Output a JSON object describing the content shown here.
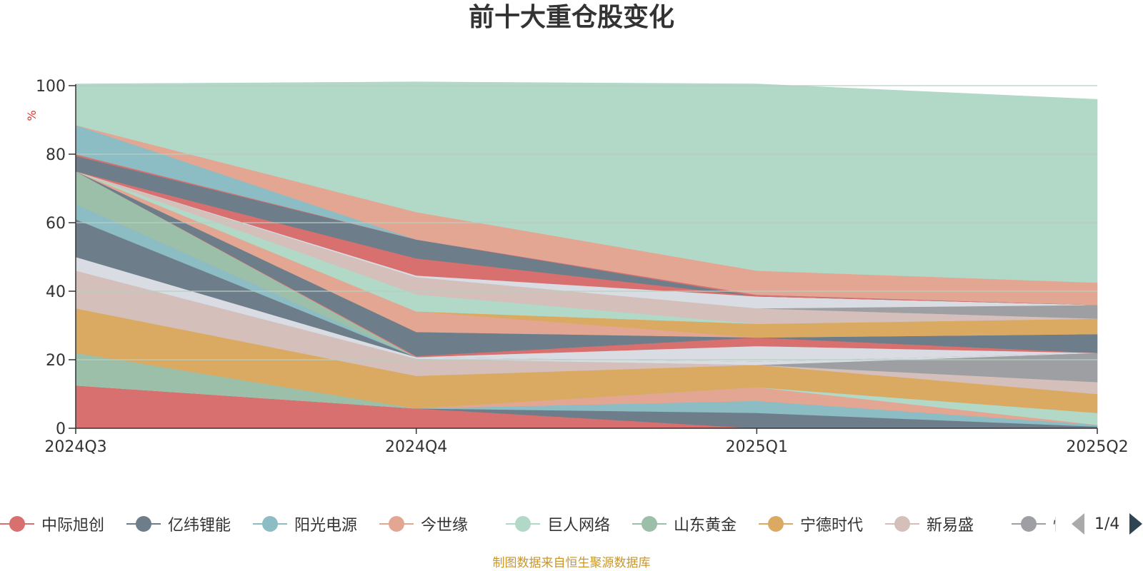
{
  "title": "前十大重仓股变化",
  "source": "制图数据来自恒生聚源数据库",
  "pager": "1/4",
  "colors": {
    "top_area": "#b2d8c7",
    "axis": "#333333",
    "grid": "#b8cfc2",
    "unit": "#e03030"
  },
  "chart_data": {
    "type": "area",
    "stacked": true,
    "ylabel": "%",
    "ylim": [
      0,
      100
    ],
    "yticks": [
      0,
      20,
      40,
      60,
      80,
      100
    ],
    "grid": true,
    "legend_position": "bottom",
    "categories": [
      "2024Q3",
      "2024Q4",
      "2025Q1",
      "2025Q2"
    ],
    "series": [
      {
        "name": "中际旭创",
        "color": "#d7706e",
        "values": [
          12.5,
          5.8,
          0,
          0
        ]
      },
      {
        "name": "亿纬锂能",
        "color": "#6d7e8a",
        "values": [
          0,
          0,
          4.5,
          0.5
        ]
      },
      {
        "name": "阳光电源",
        "color": "#8cbcc4",
        "values": [
          0,
          0,
          3.5,
          0.5
        ]
      },
      {
        "name": "今世缘",
        "color": "#e3a692",
        "values": [
          0,
          0,
          4,
          0
        ]
      },
      {
        "name": "巨人网络",
        "color": "#b2d8c7",
        "values": [
          0,
          0,
          0,
          3.5
        ]
      },
      {
        "name": "山东黄金",
        "color": "#9bbfa8",
        "values": [
          9.5,
          0,
          0,
          0
        ]
      },
      {
        "name": "宁德时代",
        "color": "#dbaa62",
        "values": [
          13,
          9.5,
          6.5,
          5.5
        ]
      },
      {
        "name": "新易盛",
        "color": "#d4bfba",
        "values": [
          11,
          5,
          0,
          3.5
        ]
      },
      {
        "name": "恺英网络",
        "color": "#9d9fa2",
        "values": [
          0,
          0,
          0,
          8.5
        ]
      },
      {
        "name": null,
        "color": "#d9dde3",
        "values": [
          4,
          0.5,
          1,
          0
        ]
      },
      {
        "name": null,
        "color": "#6d7e8a",
        "values": [
          11,
          0,
          0,
          0
        ]
      },
      {
        "name": null,
        "color": "#8cbcc4",
        "values": [
          4.5,
          0,
          0,
          0
        ]
      },
      {
        "name": null,
        "color": "#e3a692",
        "values": [
          0,
          0,
          0,
          0
        ]
      },
      {
        "name": null,
        "color": "#9bbfa8",
        "values": [
          9.5,
          0,
          0,
          0
        ]
      },
      {
        "name": null,
        "color": "#d9dde3",
        "values": [
          0,
          0,
          4.5,
          0
        ]
      },
      {
        "name": null,
        "color": "#d7706e",
        "values": [
          0,
          0.3,
          2.5,
          0
        ]
      },
      {
        "name": null,
        "color": "#6d7e8a",
        "values": [
          0,
          7,
          0,
          5.5
        ]
      },
      {
        "name": null,
        "color": "#e3a692",
        "values": [
          0,
          6,
          0,
          0
        ]
      },
      {
        "name": null,
        "color": "#dbaa62",
        "values": [
          0,
          0,
          4,
          4.5
        ]
      },
      {
        "name": null,
        "color": "#b2d8c7",
        "values": [
          0,
          5,
          0,
          0
        ]
      },
      {
        "name": null,
        "color": "#d4bfba",
        "values": [
          0,
          5,
          4.5,
          0
        ]
      },
      {
        "name": null,
        "color": "#9d9fa2",
        "values": [
          0,
          0,
          0,
          4
        ]
      },
      {
        "name": null,
        "color": "#d9dde3",
        "values": [
          0,
          0.5,
          3.5,
          0
        ]
      },
      {
        "name": null,
        "color": "#d7706e",
        "values": [
          0,
          5,
          0,
          0
        ]
      },
      {
        "name": null,
        "color": "#6d7e8a",
        "values": [
          4.5,
          5.5,
          0,
          0
        ]
      },
      {
        "name": null,
        "color": "#d7706e",
        "values": [
          0.5,
          0,
          0.5,
          0
        ]
      },
      {
        "name": null,
        "color": "#8cbcc4",
        "values": [
          8.5,
          0,
          0,
          0
        ]
      },
      {
        "name": null,
        "color": "#e3a692",
        "values": [
          0,
          8,
          7,
          6.5
        ]
      },
      {
        "name": null,
        "color": "#b2d8c7",
        "values": [
          12,
          38,
          54.5,
          53.5
        ]
      }
    ]
  }
}
